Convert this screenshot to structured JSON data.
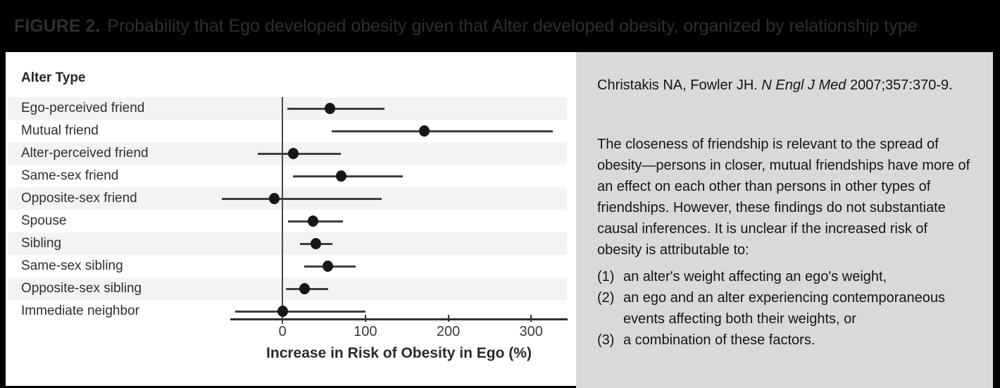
{
  "header": {
    "figure_label": "FIGURE 2.",
    "title": "Probability that Ego developed obesity given that Alter developed obesity, organized by relationship type"
  },
  "chart_data": {
    "type": "scatter",
    "subtype": "forest-plot",
    "heading": "Alter Type",
    "xlabel": "Increase in Risk of Obesity in Ego (%)",
    "x_ticks": [
      0,
      100,
      200,
      300
    ],
    "xlim": [
      -63,
      344
    ],
    "grid": "off",
    "zero_reference_line": 0,
    "categories": [
      "Ego-perceived friend",
      "Mutual friend",
      "Alter-perceived friend",
      "Same-sex friend",
      "Opposite-sex friend",
      "Spouse",
      "Sibling",
      "Same-sex sibling",
      "Opposite-sex sibling",
      "Immediate neighbor"
    ],
    "series": [
      {
        "name": "Increase in risk of obesity in ego (%)",
        "values": [
          57,
          171,
          13,
          71,
          -10,
          37,
          40,
          55,
          27,
          0
        ],
        "ci_low": [
          6,
          59,
          -30,
          13,
          -73,
          7,
          21,
          26,
          4,
          -57
        ],
        "ci_high": [
          123,
          326,
          70,
          145,
          120,
          73,
          60,
          88,
          55,
          100
        ]
      }
    ]
  },
  "sidebar": {
    "citation": {
      "authors": "Christakis NA, Fowler JH. ",
      "journal": "N Engl J Med",
      "ref": " 2007;357:370-9."
    },
    "paragraph": "The closeness of friendship is relevant to the spread of obesity—persons in closer, mutual friendships have more of an effect on each other than persons in other types of friendships. However, these findings do not substantiate causal inferences. It is unclear if the increased risk of obesity is attributable to:",
    "list": [
      {
        "num": "(1)",
        "text": "an alter's weight affecting an ego's weight,"
      },
      {
        "num": "(2)",
        "text": "an ego and an alter experiencing contemporaneous events affecting both their weights, or"
      },
      {
        "num": "(3)",
        "text": "a combination of these factors."
      }
    ]
  },
  "colors": {
    "background": "#000000",
    "title_text": "#2e2e2e",
    "chart_panel_bg": "#ffffff",
    "row_stripe": "#f3f3f3",
    "marker": "#161616",
    "note_panel_bg": "#d9d9d9",
    "note_text": "#151515"
  }
}
